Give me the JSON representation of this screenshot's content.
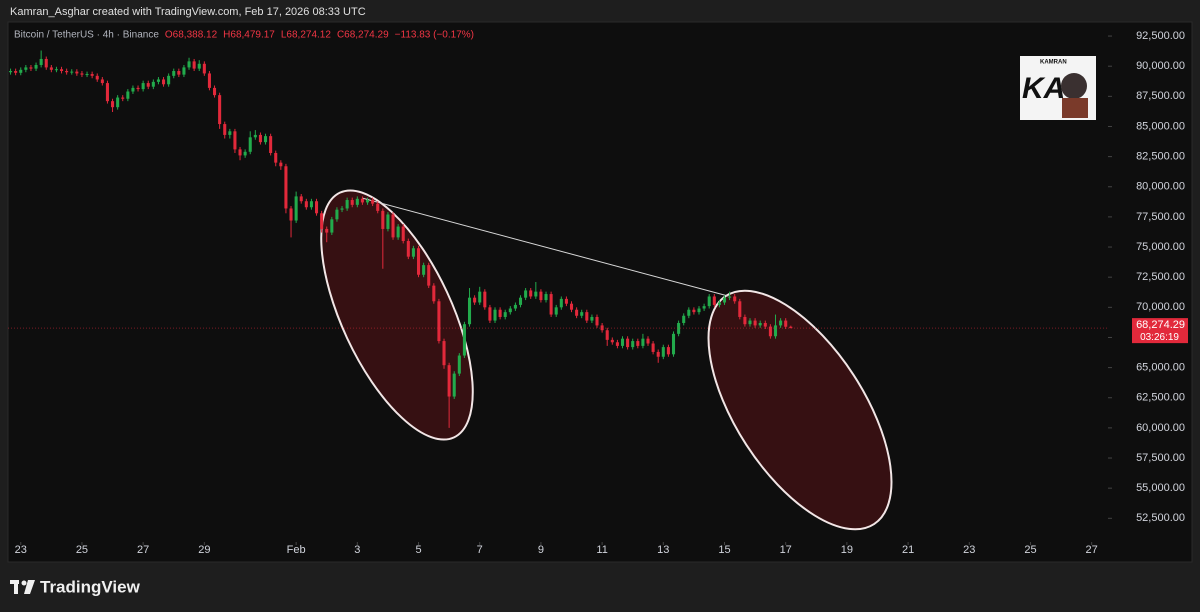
{
  "header": {
    "credit": "Kamran_Asghar created with TradingView.com, Feb 17, 2026 08:33 UTC"
  },
  "footer": {
    "brand": "TradingView"
  },
  "watermark": {
    "top": "KAMRAN",
    "mark": "KA"
  },
  "chart_data": {
    "type": "candlestick",
    "symbol": "Bitcoin / TetherUS · 4h · Binance",
    "ohlc_text": [
      "O68,388.12",
      "H68,479.17",
      "L68,274.12",
      "C68,274.29"
    ],
    "change_text": "−113.83 (−0.17%)",
    "last_price": {
      "value": 68274.29,
      "label": "68,274.29"
    },
    "countdown": "03:26:19",
    "up_color": "#22ab4c",
    "down_color": "#e2293b",
    "label_color": "#f23645",
    "xlim": [
      -0.5,
      215.2
    ],
    "xticks": [
      {
        "value": 2,
        "label": "23"
      },
      {
        "value": 14,
        "label": "25"
      },
      {
        "value": 26,
        "label": "27"
      },
      {
        "value": 38,
        "label": "29"
      },
      {
        "value": 56,
        "label": "Feb"
      },
      {
        "value": 68,
        "label": "3"
      },
      {
        "value": 80,
        "label": "5"
      },
      {
        "value": 92,
        "label": "7"
      },
      {
        "value": 104,
        "label": "9"
      },
      {
        "value": 116,
        "label": "11"
      },
      {
        "value": 128,
        "label": "13"
      },
      {
        "value": 140,
        "label": "15"
      },
      {
        "value": 152,
        "label": "17"
      },
      {
        "value": 164,
        "label": "19"
      },
      {
        "value": 176,
        "label": "21"
      },
      {
        "value": 188,
        "label": "23"
      },
      {
        "value": 200,
        "label": "25"
      },
      {
        "value": 212,
        "label": "27"
      }
    ],
    "ylim": [
      50700,
      93500
    ],
    "yticks": [
      {
        "value": 52500,
        "label": "52,500.00"
      },
      {
        "value": 55000,
        "label": "55,000.00"
      },
      {
        "value": 57500,
        "label": "57,500.00"
      },
      {
        "value": 60000,
        "label": "60,000.00"
      },
      {
        "value": 62500,
        "label": "62,500.00"
      },
      {
        "value": 65000,
        "label": "65,000.00"
      },
      {
        "value": 67500,
        "label": "67,500.00"
      },
      {
        "value": 70000,
        "label": "70,000.00"
      },
      {
        "value": 72500,
        "label": "72,500.00"
      },
      {
        "value": 75000,
        "label": "75,000.00"
      },
      {
        "value": 77500,
        "label": "77,500.00"
      },
      {
        "value": 80000,
        "label": "80,000.00"
      },
      {
        "value": 82500,
        "label": "82,500.00"
      },
      {
        "value": 85000,
        "label": "85,000.00"
      },
      {
        "value": 87500,
        "label": "87,500.00"
      },
      {
        "value": 90000,
        "label": "90,000.00"
      },
      {
        "value": 92500,
        "label": "92,500.00"
      }
    ],
    "open": [
      89500,
      89600,
      89450,
      89700,
      89900,
      89800,
      90100,
      90600,
      89900,
      89700,
      89750,
      89600,
      89500,
      89550,
      89400,
      89300,
      89350,
      89200,
      88900,
      88600,
      87100,
      86600,
      87400,
      87300,
      87900,
      88200,
      88100,
      88600,
      88300,
      88700,
      88900,
      88500,
      89200,
      89600,
      89300,
      89900,
      90400,
      89800,
      90200,
      89400,
      88200,
      87600,
      85200,
      84300,
      84600,
      83100,
      82600,
      82900,
      84100,
      84300,
      83700,
      84200,
      82800,
      82000,
      81700,
      78200,
      77200,
      79200,
      78800,
      78300,
      78800,
      77800,
      76500,
      76200,
      77300,
      78100,
      78200,
      78900,
      78500,
      79000,
      78700,
      78900,
      78600,
      78000,
      76500,
      77700,
      75800,
      76700,
      75500,
      74200,
      74900,
      72700,
      73500,
      71800,
      70500,
      67200,
      65200,
      62600,
      64500,
      66000,
      68600,
      70800,
      70400,
      71300,
      70000,
      68900,
      69800,
      69200,
      69600,
      69900,
      70200,
      70800,
      71400,
      70900,
      71300,
      70600,
      71100,
      69400,
      70000,
      70700,
      70300,
      69800,
      69300,
      69600,
      68900,
      69200,
      68500,
      68100,
      67300,
      67100,
      66800,
      67400,
      66700,
      67200,
      66800,
      67400,
      67000,
      66300,
      65900,
      66700,
      66100,
      67800,
      68700,
      69300,
      69800,
      69600,
      69900,
      70100,
      70900,
      70200,
      70400,
      70800,
      70900,
      70500,
      69200,
      68600,
      68900,
      68500,
      68700,
      68400,
      67600,
      68500,
      68900,
      68388.12
    ],
    "high": [
      89800,
      89800,
      89900,
      90100,
      90100,
      90300,
      91300,
      90800,
      90100,
      89950,
      89950,
      89800,
      89750,
      89750,
      89600,
      89550,
      89550,
      89400,
      89100,
      88800,
      87300,
      87600,
      87600,
      88100,
      88400,
      88400,
      88800,
      88800,
      88900,
      89100,
      89100,
      89400,
      89800,
      89800,
      90100,
      90700,
      90600,
      90500,
      90400,
      89600,
      88400,
      87800,
      85400,
      84800,
      84800,
      83300,
      83100,
      84600,
      84700,
      84500,
      84400,
      84400,
      83000,
      82200,
      81900,
      78400,
      79600,
      79400,
      79000,
      79000,
      79000,
      78000,
      76700,
      77500,
      78300,
      78400,
      79100,
      79100,
      79200,
      79200,
      79100,
      79100,
      78800,
      78200,
      77900,
      77900,
      76900,
      76900,
      75700,
      75100,
      75100,
      73700,
      73700,
      72000,
      70700,
      67400,
      65400,
      64700,
      66200,
      68800,
      71600,
      71000,
      71700,
      71500,
      70200,
      70000,
      70000,
      69800,
      70100,
      70400,
      71000,
      71600,
      71600,
      72100,
      71500,
      71300,
      71300,
      70200,
      70900,
      70900,
      70500,
      70000,
      69800,
      69800,
      69400,
      69400,
      68700,
      68300,
      67500,
      67300,
      67600,
      67600,
      67400,
      67400,
      67800,
      67600,
      67200,
      66500,
      66900,
      66900,
      68000,
      68900,
      69500,
      70000,
      70000,
      70100,
      70300,
      71100,
      71100,
      70600,
      71000,
      71300,
      71100,
      70700,
      69400,
      69100,
      69100,
      68900,
      68900,
      68600,
      69400,
      69100,
      69100,
      68479.17
    ],
    "low": [
      89300,
      89250,
      89250,
      89500,
      89600,
      89600,
      89900,
      89700,
      89500,
      89500,
      89400,
      89300,
      89300,
      89200,
      89100,
      89100,
      89000,
      88700,
      88400,
      86900,
      86200,
      86400,
      87100,
      87100,
      87700,
      87900,
      87900,
      88100,
      88100,
      88500,
      88300,
      88300,
      89000,
      89100,
      89100,
      89700,
      89600,
      89600,
      89200,
      88000,
      87400,
      84800,
      84000,
      84000,
      82800,
      82200,
      82400,
      82700,
      83900,
      83500,
      83500,
      82600,
      81700,
      81400,
      77800,
      75800,
      77000,
      78600,
      78100,
      78100,
      77600,
      76200,
      75400,
      76000,
      77100,
      77900,
      78000,
      78300,
      78300,
      78500,
      78500,
      78400,
      77800,
      73200,
      76300,
      75600,
      75600,
      75300,
      74000,
      74000,
      72500,
      72500,
      71600,
      70300,
      67000,
      64900,
      60000,
      62400,
      64300,
      65800,
      68400,
      70200,
      70200,
      69800,
      68700,
      68700,
      69000,
      69000,
      69400,
      69700,
      70000,
      70600,
      70700,
      70700,
      70400,
      70400,
      69200,
      69200,
      69800,
      70100,
      69600,
      69100,
      69100,
      68700,
      68700,
      68300,
      67900,
      66800,
      66900,
      66600,
      66600,
      66500,
      66500,
      66600,
      66600,
      66800,
      66100,
      65400,
      65700,
      65900,
      65900,
      67600,
      68500,
      69100,
      69400,
      69400,
      69700,
      69900,
      70000,
      70000,
      70200,
      70600,
      70300,
      69000,
      68400,
      68400,
      68300,
      68300,
      68200,
      67400,
      67400,
      68300,
      68200,
      68274.12
    ],
    "close": [
      89600,
      89450,
      89700,
      89900,
      89800,
      90100,
      90600,
      89900,
      89700,
      89750,
      89600,
      89500,
      89550,
      89400,
      89300,
      89350,
      89200,
      88900,
      88600,
      87100,
      86600,
      87400,
      87300,
      87900,
      88200,
      88100,
      88600,
      88300,
      88700,
      88900,
      88500,
      89200,
      89600,
      89300,
      89900,
      90400,
      89800,
      90200,
      89400,
      88200,
      87600,
      85200,
      84300,
      84600,
      83100,
      82600,
      82900,
      84100,
      84300,
      83700,
      84200,
      82800,
      82000,
      81700,
      78200,
      77200,
      79200,
      78800,
      78300,
      78800,
      77800,
      76500,
      76200,
      77300,
      78100,
      78200,
      78900,
      78500,
      79000,
      78700,
      78900,
      78600,
      78000,
      76500,
      77700,
      75800,
      76700,
      75500,
      74200,
      74900,
      72700,
      73500,
      71800,
      70500,
      67200,
      65200,
      62600,
      64500,
      66000,
      68600,
      70800,
      70400,
      71300,
      70000,
      68900,
      69800,
      69200,
      69600,
      69900,
      70200,
      70800,
      71400,
      70900,
      71300,
      70600,
      71100,
      69400,
      70000,
      70700,
      70300,
      69800,
      69300,
      69600,
      68900,
      69200,
      68500,
      68100,
      67300,
      67100,
      66800,
      67400,
      66700,
      67200,
      66800,
      67400,
      67000,
      66300,
      65900,
      66700,
      66100,
      67800,
      68700,
      69300,
      69800,
      69600,
      69900,
      70100,
      70900,
      70200,
      70400,
      70800,
      70900,
      70500,
      69200,
      68600,
      68900,
      68500,
      68700,
      68400,
      67600,
      68500,
      68900,
      68388.12,
      68274.29
    ]
  }
}
